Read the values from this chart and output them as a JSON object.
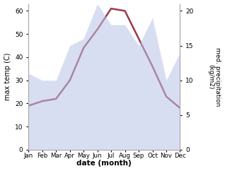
{
  "months": [
    "Jan",
    "Feb",
    "Mar",
    "Apr",
    "May",
    "Jun",
    "Jul",
    "Aug",
    "Sep",
    "Oct",
    "Nov",
    "Dec"
  ],
  "temp": [
    19,
    21,
    22,
    30,
    44,
    52,
    61,
    60,
    48,
    36,
    23,
    18
  ],
  "precip": [
    11,
    10,
    10,
    15,
    16,
    21,
    18,
    18,
    15,
    19,
    10,
    14
  ],
  "temp_color": "#9b3a4a",
  "precip_fill_color": "#b8c4e8",
  "temp_ylim": [
    0,
    63
  ],
  "precip_ylim": [
    0,
    21
  ],
  "xlabel": "date (month)",
  "ylabel_left": "max temp (C)",
  "ylabel_right": "med. precipitation\n(kg/m2)",
  "background_color": "#ffffff",
  "spine_color": "#aaaaaa"
}
